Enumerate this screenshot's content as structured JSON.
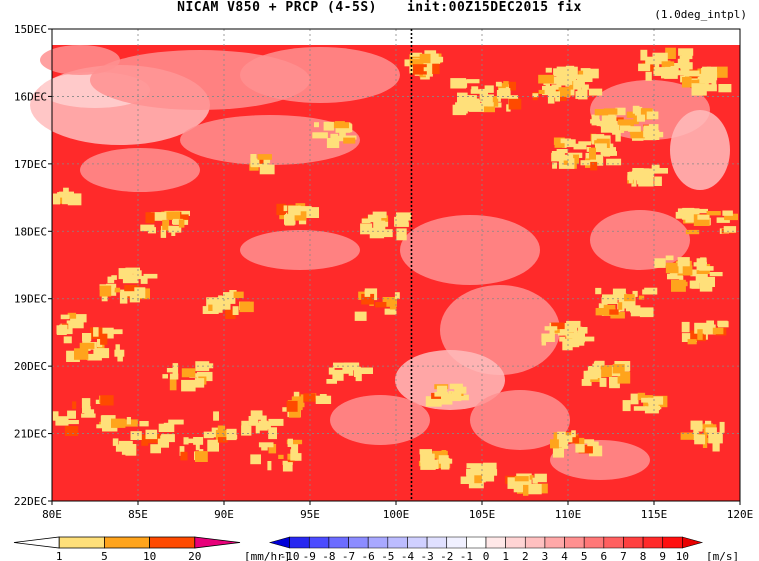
{
  "title": {
    "left": "NICAM  V850 + PRCP (4-5S)",
    "right": "init:00Z15DEC2015 fix"
  },
  "note": "(1.0deg_intpl)",
  "chart_data": {
    "type": "heatmap",
    "title": "NICAM  V850 + PRCP (4-5S) init:00Z15DEC2015 fix",
    "xlabel": "",
    "ylabel": "",
    "xlim": [
      80,
      120
    ],
    "ylim": [
      "15DEC",
      "22DEC"
    ],
    "x_ticks": [
      "80E",
      "85E",
      "90E",
      "95E",
      "100E",
      "105E",
      "110E",
      "115E",
      "120E"
    ],
    "y_ticks": [
      "15DEC",
      "16DEC",
      "17DEC",
      "18DEC",
      "19DEC",
      "20DEC",
      "21DEC",
      "22DEC"
    ],
    "marker_line_lon": 100.9,
    "grid": true,
    "series": [
      {
        "variable": "V850 (shaded)",
        "unit": "[m/s]",
        "levels": [
          -10,
          -9,
          -8,
          -7,
          -6,
          -5,
          -4,
          -3,
          -2,
          -1,
          0,
          1,
          2,
          3,
          4,
          5,
          6,
          7,
          8,
          9,
          10
        ],
        "colors": [
          "#0000d8",
          "#2828f0",
          "#4c4cff",
          "#6c6cff",
          "#8c8cff",
          "#a8a8ff",
          "#bcbcff",
          "#d0d0ff",
          "#e0e0ff",
          "#f0f0ff",
          "#ffffff",
          "#ffe8e8",
          "#ffd4d4",
          "#ffc0c0",
          "#ffa8a8",
          "#ff9090",
          "#ff7878",
          "#ff6060",
          "#ff4040",
          "#ff2a2a",
          "#ff1010",
          "#e80000"
        ]
      },
      {
        "variable": "PRCP (shaded)",
        "unit": "[mm/hr]",
        "levels": [
          1,
          5,
          10,
          20
        ],
        "colors": [
          "#ffffff",
          "#ffe07a",
          "#ffa41c",
          "#ff4a00",
          "#e8007a"
        ]
      }
    ]
  },
  "colors": {
    "v_background": "#ff2a2a",
    "v_light": "#ff9090",
    "v_lighter": "#ffbcbc",
    "prcp_1_5": "#ffe07a",
    "prcp_5_10": "#ffa41c",
    "prcp_10_20": "#ff4a00"
  }
}
